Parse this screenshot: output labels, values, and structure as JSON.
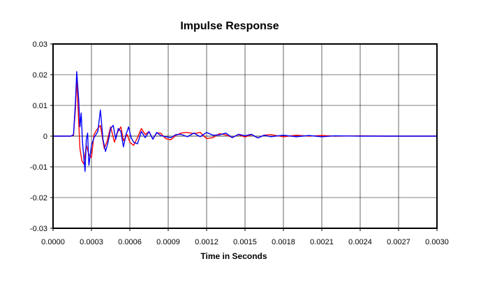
{
  "chart_data": {
    "type": "line",
    "title": "Impulse Response",
    "xlabel": "Time in Seconds",
    "ylabel": "",
    "xlim": [
      0,
      0.003
    ],
    "ylim": [
      -0.03,
      0.03
    ],
    "x_ticks": [
      0,
      0.0003,
      0.0006,
      0.0009,
      0.0012,
      0.0015,
      0.0018,
      0.0021,
      0.0024,
      0.0027,
      0.003
    ],
    "x_tick_labels": [
      "0.0000",
      "0.0003",
      "0.0006",
      "0.0009",
      "0.0012",
      "0.0015",
      "0.0018",
      "0.0021",
      "0.0024",
      "0.0027",
      "0.0030"
    ],
    "y_ticks": [
      0.03,
      0.02,
      0.01,
      0,
      -0.01,
      -0.02,
      -0.03
    ],
    "y_tick_labels": [
      "0.03",
      "0.02",
      "0.01",
      "0",
      "-0.01",
      "-0.02",
      "-0.03"
    ],
    "grid": true,
    "legend": "none",
    "series": [
      {
        "name": "red",
        "color": "#ff0000",
        "points": [
          [
            0,
            0
          ],
          [
            0.00014,
            0
          ],
          [
            0.00016,
            0.0003
          ],
          [
            0.000175,
            0.009
          ],
          [
            0.000185,
            0.019
          ],
          [
            0.0002,
            0.005
          ],
          [
            0.00021,
            -0.004
          ],
          [
            0.000225,
            -0.008
          ],
          [
            0.00024,
            -0.009
          ],
          [
            0.00026,
            -0.003
          ],
          [
            0.00028,
            -0.006
          ],
          [
            0.0003,
            -0.007
          ],
          [
            0.00032,
            0.0005
          ],
          [
            0.00034,
            0.002
          ],
          [
            0.00037,
            0.0035
          ],
          [
            0.0004,
            -0.004
          ],
          [
            0.00042,
            -0.002
          ],
          [
            0.00045,
            0.003
          ],
          [
            0.00048,
            -0.002
          ],
          [
            0.0005,
            0.001
          ],
          [
            0.00053,
            0.003
          ],
          [
            0.00055,
            -0.0015
          ],
          [
            0.00058,
            0.0005
          ],
          [
            0.0006,
            -0.002
          ],
          [
            0.00063,
            -0.003
          ],
          [
            0.00066,
            -0.0005
          ],
          [
            0.00069,
            0.0025
          ],
          [
            0.00072,
            0.0005
          ],
          [
            0.00075,
            0.0015
          ],
          [
            0.00078,
            -0.001
          ],
          [
            0.00081,
            0.001
          ],
          [
            0.00084,
            0.001
          ],
          [
            0.00088,
            -0.0008
          ],
          [
            0.00092,
            -0.0012
          ],
          [
            0.00096,
            0.0003
          ],
          [
            0.001,
            0.001
          ],
          [
            0.00105,
            0.0012
          ],
          [
            0.0011,
            0.0008
          ],
          [
            0.00115,
            0.0012
          ],
          [
            0.0012,
            -0.0008
          ],
          [
            0.00125,
            -0.0005
          ],
          [
            0.0013,
            0.0008
          ],
          [
            0.00135,
            0.0004
          ],
          [
            0.0014,
            -0.0004
          ],
          [
            0.00145,
            0.0005
          ],
          [
            0.0015,
            -0.0003
          ],
          [
            0.00155,
            0.0005
          ],
          [
            0.0016,
            -0.0006
          ],
          [
            0.00165,
            0.0003
          ],
          [
            0.0017,
            0.0005
          ],
          [
            0.0018,
            -0.0002
          ],
          [
            0.0019,
            0.0003
          ],
          [
            0.002,
            0
          ],
          [
            0.0021,
            0.0002
          ],
          [
            0.0022,
            0
          ],
          [
            0.0024,
            0.0001
          ],
          [
            0.0026,
            0
          ],
          [
            0.003,
            0
          ]
        ]
      },
      {
        "name": "blue",
        "color": "#0000ff",
        "points": [
          [
            0,
            0
          ],
          [
            0.00014,
            0
          ],
          [
            0.00016,
            0.0005
          ],
          [
            0.000175,
            0.011
          ],
          [
            0.000185,
            0.021
          ],
          [
            0.0002,
            0.012
          ],
          [
            0.00021,
            0.003
          ],
          [
            0.00022,
            0.0075
          ],
          [
            0.00023,
            -0.002
          ],
          [
            0.00025,
            -0.0115
          ],
          [
            0.00026,
            -0.001
          ],
          [
            0.00027,
            0.001
          ],
          [
            0.00028,
            -0.0095
          ],
          [
            0.0003,
            -0.003
          ],
          [
            0.00032,
            -0.0005
          ],
          [
            0.00035,
            0.0015
          ],
          [
            0.00037,
            0.0085
          ],
          [
            0.00039,
            -0.001
          ],
          [
            0.00041,
            -0.005
          ],
          [
            0.00043,
            -0.002
          ],
          [
            0.00045,
            0.0025
          ],
          [
            0.00047,
            0.0035
          ],
          [
            0.00049,
            -0.001
          ],
          [
            0.00051,
            0.0025
          ],
          [
            0.00053,
            0.0015
          ],
          [
            0.00055,
            -0.0035
          ],
          [
            0.00057,
            0.0005
          ],
          [
            0.00059,
            0.003
          ],
          [
            0.00061,
            -0.0005
          ],
          [
            0.00063,
            -0.002
          ],
          [
            0.00066,
            -0.0025
          ],
          [
            0.00069,
            0.0015
          ],
          [
            0.00072,
            -0.0005
          ],
          [
            0.00075,
            0.0015
          ],
          [
            0.00078,
            -0.001
          ],
          [
            0.00081,
            0.0012
          ],
          [
            0.00084,
            0.0002
          ],
          [
            0.00088,
            -0.0002
          ],
          [
            0.00092,
            -0.0005
          ],
          [
            0.00096,
            0.0005
          ],
          [
            0.001,
            0.0006
          ],
          [
            0.00105,
            -0.0002
          ],
          [
            0.0011,
            0.001
          ],
          [
            0.00115,
            -0.0002
          ],
          [
            0.0012,
            0.0012
          ],
          [
            0.00125,
            0.0003
          ],
          [
            0.0013,
            0.0004
          ],
          [
            0.00135,
            0.001
          ],
          [
            0.0014,
            -0.0005
          ],
          [
            0.00145,
            0.0006
          ],
          [
            0.0015,
            0.0001
          ],
          [
            0.00155,
            0.0006
          ],
          [
            0.0016,
            -0.0006
          ],
          [
            0.00165,
            0.0003
          ],
          [
            0.0017,
            -0.0002
          ],
          [
            0.0018,
            0.0003
          ],
          [
            0.0019,
            -0.0002
          ],
          [
            0.002,
            0.0002
          ],
          [
            0.0021,
            -0.0002
          ],
          [
            0.0022,
            0.0001
          ],
          [
            0.0024,
            0
          ],
          [
            0.0026,
            0
          ],
          [
            0.003,
            0
          ]
        ]
      }
    ]
  }
}
